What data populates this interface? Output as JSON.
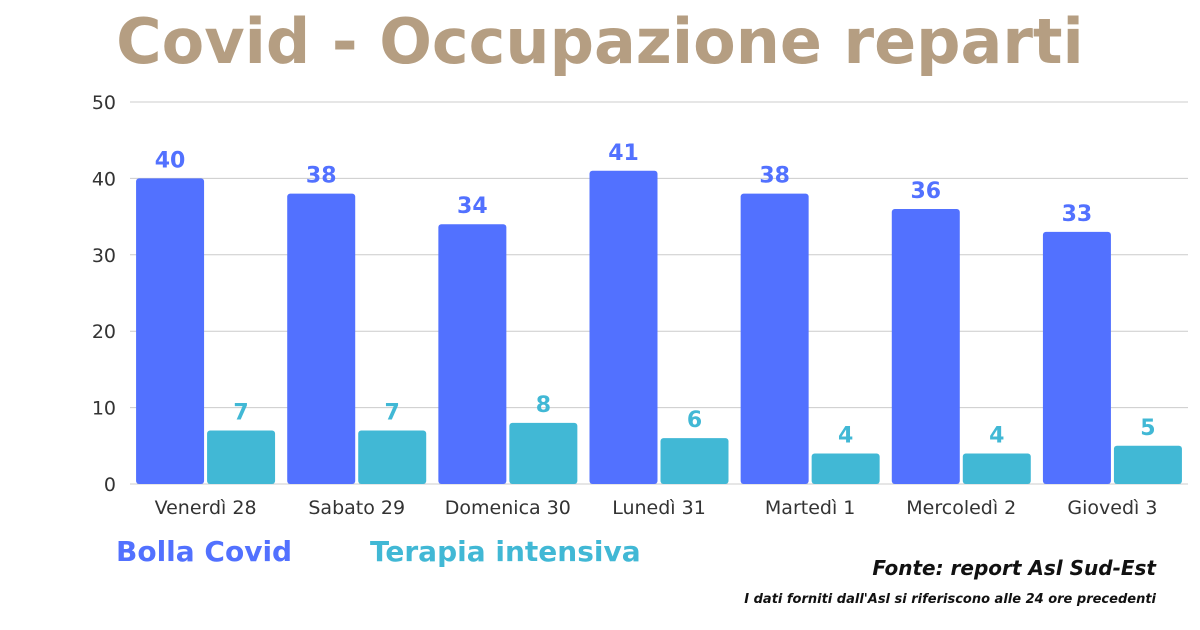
{
  "title": "Covid - Occupazione reparti",
  "colors": {
    "title": "#b59e82",
    "series_1": "#5271ff",
    "series_2": "#41b8d5",
    "grid": "#cccccc",
    "axis_text": "#333333"
  },
  "legend": {
    "series_1": "Bolla Covid",
    "series_2": "Terapia intensiva"
  },
  "footer": {
    "source": "Fonte: report Asl Sud-Est",
    "note": "I dati forniti dall'Asl si riferiscono alle 24 ore precedenti"
  },
  "chart_data": {
    "type": "bar",
    "categories": [
      "Venerdì 28",
      "Sabato 29",
      "Domenica 30",
      "Lunedì 31",
      "Martedì 1",
      "Mercoledì 2",
      "Giovedì 3"
    ],
    "series": [
      {
        "name": "Bolla Covid",
        "values": [
          40,
          38,
          34,
          41,
          38,
          36,
          33
        ]
      },
      {
        "name": "Terapia intensiva",
        "values": [
          7,
          7,
          8,
          6,
          4,
          4,
          5
        ]
      }
    ],
    "yticks": [
      0,
      10,
      20,
      30,
      40,
      50
    ],
    "ylim": [
      0,
      50
    ],
    "grid": true,
    "data_labels": true,
    "legend_position": "bottom-left"
  }
}
